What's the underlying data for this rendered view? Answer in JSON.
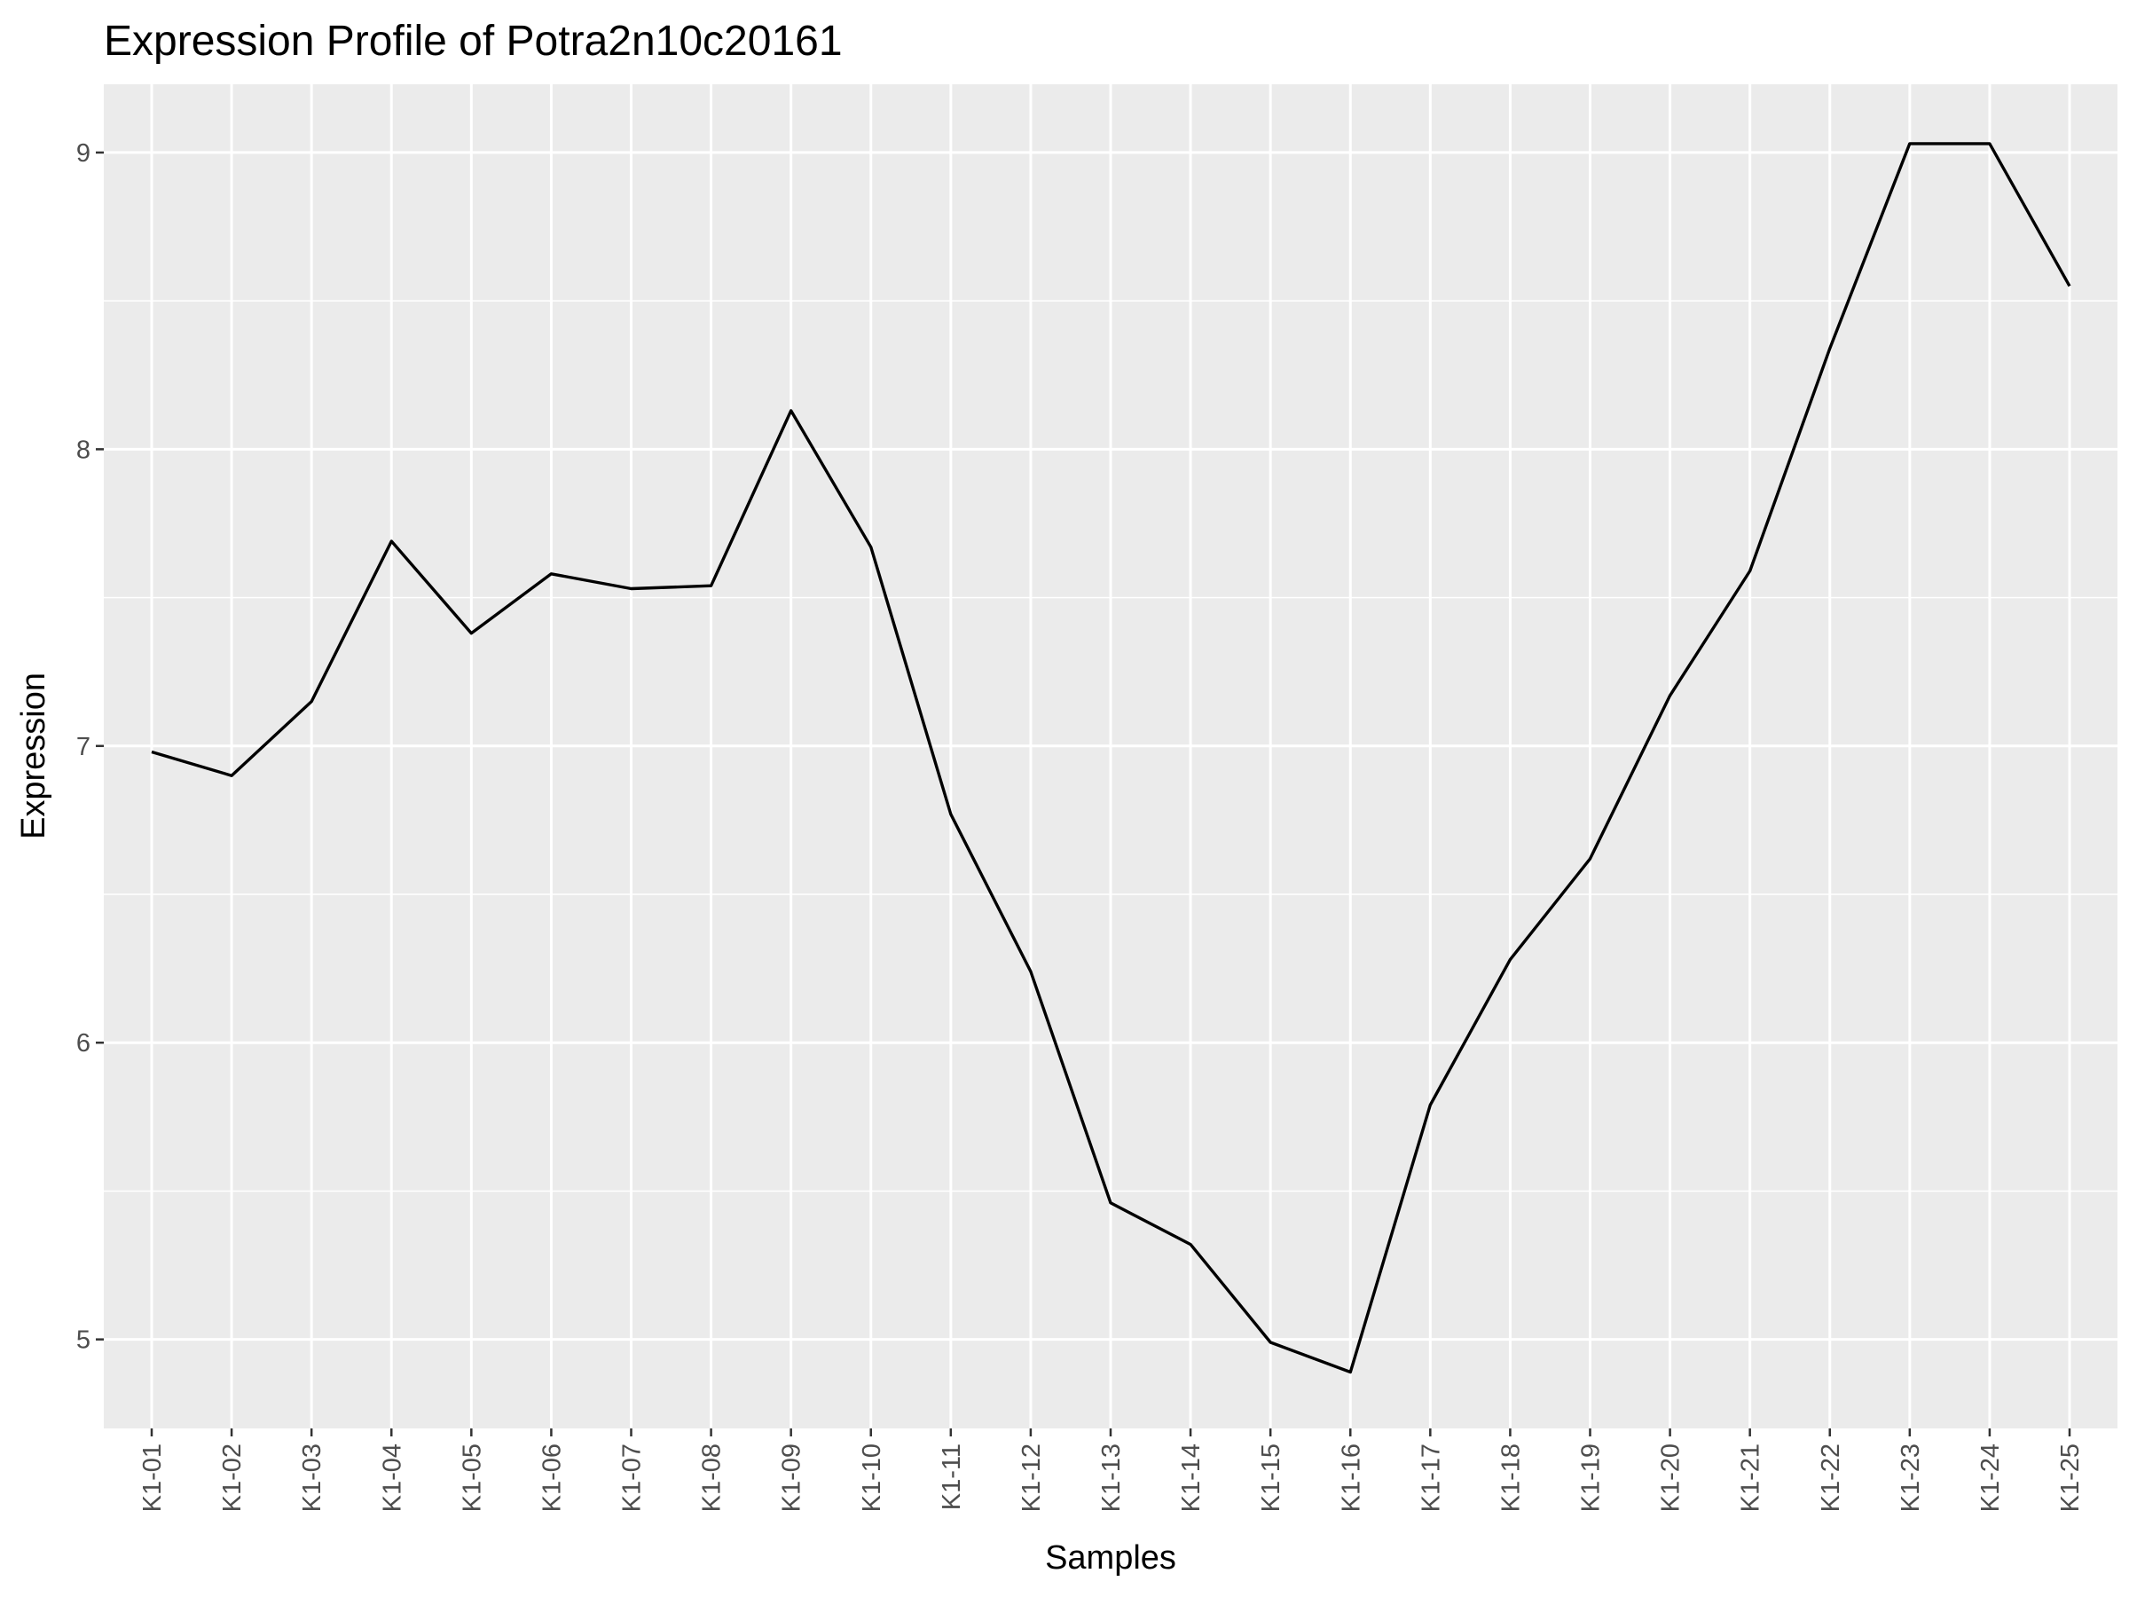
{
  "chart_data": {
    "type": "line",
    "title": "Expression Profile of Potra2n10c20161",
    "xlabel": "Samples",
    "ylabel": "Expression",
    "categories": [
      "K1-01",
      "K1-02",
      "K1-03",
      "K1-04",
      "K1-05",
      "K1-06",
      "K1-07",
      "K1-08",
      "K1-09",
      "K1-10",
      "K1-11",
      "K1-12",
      "K1-13",
      "K1-14",
      "K1-15",
      "K1-16",
      "K1-17",
      "K1-18",
      "K1-19",
      "K1-20",
      "K1-21",
      "K1-22",
      "K1-23",
      "K1-24",
      "K1-25"
    ],
    "values": [
      6.98,
      6.9,
      7.15,
      7.69,
      7.38,
      7.58,
      7.53,
      7.54,
      8.13,
      7.67,
      6.77,
      6.24,
      5.46,
      5.32,
      4.99,
      4.89,
      5.79,
      6.28,
      6.62,
      7.17,
      7.59,
      8.34,
      9.03,
      9.03,
      8.55
    ],
    "ylim": [
      4.7,
      9.23
    ],
    "yticks": [
      "5",
      "6",
      "7",
      "8",
      "9"
    ],
    "grid": true,
    "colors": {
      "panel": "#ebebeb",
      "grid": "#ffffff",
      "line": "#000000",
      "tick_text": "#4d4d4d"
    }
  }
}
